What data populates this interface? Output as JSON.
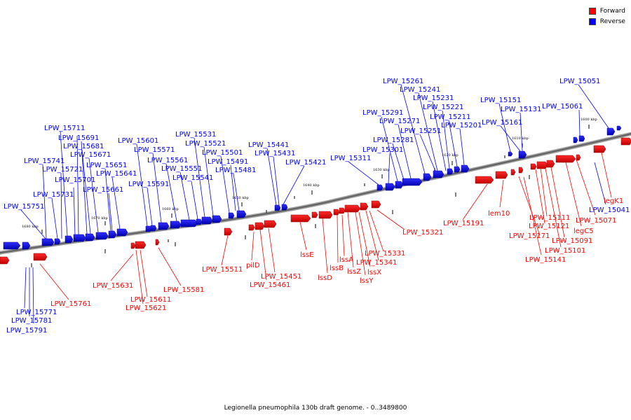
{
  "caption": "Legionella pneumophila 130b draft genome. - 0..3489800",
  "legend": [
    {
      "label": "Forward",
      "color": "#ff0000"
    },
    {
      "label": "Reverse",
      "color": "#0000ff"
    }
  ],
  "ticks": [
    "1680 kbp",
    "1670 kbp",
    "1660 kbp",
    "1650 kbp",
    "1640 kbp",
    "1630 kbp",
    "1620 kbp",
    "1610 kbp",
    "1600 kbp"
  ],
  "reverse_labels": [
    "LPW_15051",
    "LPW_15061",
    "LPW_15131",
    "LPW_15151",
    "LPW_15161",
    "LPW_15201",
    "LPW_15211",
    "LPW_15221",
    "LPW_15231",
    "LPW_15241",
    "LPW_15251",
    "LPW_15261",
    "LPW_15271",
    "LPW_15281",
    "LPW_15291",
    "LPW_15301",
    "LPW_15311",
    "LPW_15421",
    "LPW_15431",
    "LPW_15441",
    "LPW_15481",
    "LPW_15491",
    "LPW_15501",
    "LPW_15521",
    "LPW_15531",
    "LPW_15541",
    "LPW_15551",
    "LPW_15561",
    "LPW_15571",
    "LPW_15591",
    "LPW_15601",
    "LPW_15641",
    "LPW_15651",
    "LPW_15661",
    "LPW_15671",
    "LPW_15681",
    "LPW_15691",
    "LPW_15701",
    "LPW_15711",
    "LPW_15721",
    "LPW_15731",
    "LPW_15741",
    "LPW_15751",
    "LPW_15771",
    "LPW_15781",
    "LPW_15791",
    "LPW_15041"
  ],
  "forward_labels": [
    "legK1",
    "LPW_15071",
    "legC5",
    "LPW_15091",
    "LPW_15101",
    "LPW_15111",
    "LPW_15121",
    "LPW_15141",
    "LPW_15171",
    "lem10",
    "LPW_15191",
    "LPW_15321",
    "LPW_15331",
    "LPW_15341",
    "lssX",
    "lssY",
    "lssZ",
    "lssA",
    "lssB",
    "lssD",
    "lssE",
    "LPW_15451",
    "LPW_15461",
    "pilD",
    "LPW_15511",
    "LPW_15581",
    "LPW_15611",
    "LPW_15621",
    "LPW_15631",
    "LPW_15761"
  ]
}
